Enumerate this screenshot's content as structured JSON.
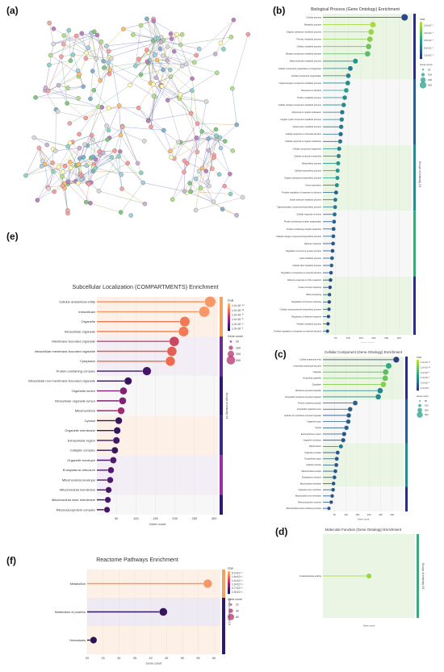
{
  "figure": {
    "panel_labels": {
      "a": "(a)",
      "b": "(b)",
      "c": "(c)",
      "d": "(d)",
      "e": "(e)",
      "f": "(f)"
    }
  },
  "network": {
    "node_colors": [
      "#7fc97f",
      "#f4a6a6",
      "#a6cee3",
      "#fdbf6f",
      "#cab2d6",
      "#b2df8a",
      "#fb9a99",
      "#ffffb3",
      "#8dd3c7",
      "#d9d9d9",
      "#bc80bd",
      "#80b1d3"
    ],
    "edge_colors": [
      "#888888",
      "#4a6fc7",
      "#5c9b5c",
      "#c58b2a",
      "#7a4aa8"
    ]
  },
  "chart_data": [
    {
      "id": "b",
      "type": "lollipop",
      "title": "Biological Process (Gene Ontology) Enrichment",
      "xlabel": "Gene count",
      "xlim": [
        0,
        350
      ],
      "xticks": [
        50,
        100,
        150,
        200,
        250,
        300
      ],
      "legend_fdr_title": "FDR",
      "legend_fdr_labels": [
        "2.0×10⁻⁴",
        "4.0×10⁻⁴",
        "6.0×10⁻⁴",
        "8.0×10⁻⁴",
        "1.0×10⁻³"
      ],
      "legend_size_title": "Gene count",
      "legend_size_labels": [
        "50",
        "100",
        "200",
        "300"
      ],
      "group_label": "Groups of similarity 0.8",
      "color_scheme": "green",
      "categories": [
        "Cellular process",
        "Metabolic process",
        "Organic substance metabolic process",
        "Primary metabolic process",
        "Cellular metabolic process",
        "Nitrogen compound metabolic process",
        "Macromolecule metabolic process",
        "Cellular component organization or biogenesis",
        "Cellular component organization",
        "Organonitrogen compound metabolic process",
        "Response to stimulus",
        "Protein metabolic process",
        "Cellular nitrogen compound metabolic process",
        "Response to organic substance",
        "Organic cyclic compound metabolic process",
        "Heterocycle metabolic process",
        "Cellular response to chemical stimulus",
        "Cellular response to organic substance",
        "Cellular component biogenesis",
        "Cellular component assembly",
        "Biosynthetic process",
        "Cellular biosynthetic process",
        "Organic substance biosynthetic process",
        "Gene expression",
        "Positive regulation of response to stimulus",
        "Small molecule metabolic process",
        "Organonitrogen compound biosynthetic process",
        "Cellular response to stress",
        "Protein-containing complex organization",
        "Protein-containing complex assembly",
        "Cellular nitrogen compound biosynthetic process",
        "Defense response",
        "Regulation of immune system process",
        "Lipid metabolic process",
        "Cellular lipid metabolic process",
        "Regulation of response to external stimulus",
        "Defense response to other organism",
        "Innate immune response",
        "RNA processing",
        "Regulation of immune response",
        "Cellular macromolecule biosynthetic process",
        "Regulation of defense response",
        "Peptide metabolic process",
        "Positive regulation of response to external stimulus"
      ],
      "values": [
        322,
        197,
        190,
        185,
        180,
        176,
        128,
        108,
        100,
        98,
        92,
        86,
        82,
        76,
        74,
        72,
        70,
        68,
        64,
        62,
        60,
        58,
        57,
        55,
        52,
        49,
        48,
        46,
        44,
        42,
        41,
        40,
        38,
        36,
        34,
        32,
        30,
        28,
        26,
        25,
        24,
        22,
        20,
        18
      ],
      "fdr_level": [
        0.1,
        0.95,
        0.9,
        0.85,
        0.75,
        0.7,
        0.45,
        0.3,
        0.35,
        0.4,
        0.5,
        0.4,
        0.4,
        0.3,
        0.35,
        0.3,
        0.25,
        0.3,
        0.35,
        0.35,
        0.45,
        0.45,
        0.45,
        0.4,
        0.2,
        0.3,
        0.3,
        0.25,
        0.2,
        0.2,
        0.2,
        0.15,
        0.15,
        0.2,
        0.2,
        0.15,
        0.1,
        0.1,
        0.15,
        0.1,
        0.15,
        0.1,
        0.1,
        0.1
      ],
      "group_colors": [
        "#2a2f7a",
        "#2e5e8c",
        "#2d8a8a",
        "#3fa87a",
        "#2a2f7a"
      ],
      "group_bg": [
        "#eaf5e3",
        "#f7f7f7"
      ]
    },
    {
      "id": "c",
      "type": "lollipop",
      "title": "Cellular Component (Gene Ontology) Enrichment",
      "xlabel": "Gene count",
      "xlim": [
        0,
        350
      ],
      "xticks": [
        50,
        100,
        150,
        200,
        250,
        300
      ],
      "legend_fdr_title": "FDR",
      "legend_fdr_labels": [
        "1.0×10⁻¹⁶",
        "1.0×10⁻¹²",
        "1.0×10⁻⁸",
        "1.0×10⁻⁴",
        "1.0×10⁻²",
        "1.0×10⁻¹"
      ],
      "legend_size_title": "Gene count",
      "legend_size_labels": [
        "50",
        "100",
        "200",
        "300"
      ],
      "color_scheme": "green",
      "categories": [
        "Cellular anatomical entity",
        "Intracellular anatomical structure",
        "Organelle",
        "Intracellular organelle",
        "Cytoplasm",
        "Membrane-bounded organelle",
        "Intracellular membrane-bounded organelle",
        "Protein-containing complex",
        "Intracellular organelle lumen",
        "Intracellular non-membrane-bounded organelle",
        "Organelle lumen",
        "Cytosol",
        "Endomembrane system",
        "Organelle membrane",
        "Mitochondrion",
        "Organelle envelope",
        "Extracellular region",
        "Catalytic complex",
        "Mitochondrial envelope",
        "Endoplasmic reticulum",
        "Mitochondrial membrane",
        "Organelle inner membrane",
        "Mitochondrial inner membrane",
        "Ribonucleoprotein complex",
        "Mitochondrial protein-containing complex"
      ],
      "values": [
        318,
        285,
        272,
        270,
        262,
        248,
        240,
        140,
        118,
        112,
        110,
        102,
        92,
        88,
        78,
        64,
        60,
        58,
        54,
        50,
        46,
        44,
        40,
        36,
        26
      ],
      "fdr_level": [
        0.05,
        0.55,
        0.7,
        0.75,
        0.85,
        0.35,
        0.4,
        0.2,
        0.2,
        0.15,
        0.2,
        0.2,
        0.15,
        0.15,
        0.3,
        0.15,
        0.15,
        0.15,
        0.15,
        0.15,
        0.15,
        0.15,
        0.15,
        0.15,
        0.15
      ],
      "group_colors": [
        "#2a2f7a",
        "#2e5e8c",
        "#2d8a8a",
        "#2a2f7a"
      ],
      "group_bg": [
        "#eaf5e3",
        "#f7f7f7"
      ]
    },
    {
      "id": "d",
      "type": "lollipop",
      "title": "Molecular Function (Gene Ontology) Enrichment",
      "xlabel": "Gene count",
      "xlim": [
        0,
        300
      ],
      "xticks": [],
      "group_label": "Groups of similarity 0.8",
      "color_scheme": "green",
      "categories": [
        "Oxidoreductase activity"
      ],
      "values": [
        150
      ],
      "fdr_level": [
        0.9
      ],
      "group_colors": [
        "#3fa87a"
      ],
      "group_bg": [
        "#eaf5e3"
      ]
    },
    {
      "id": "e",
      "type": "lollipop",
      "title": "Subcellular Localization (COMPARTMENTS) Enrichment",
      "xlabel": "Gene count",
      "xlim": [
        0,
        310
      ],
      "xticks": [
        50,
        100,
        150,
        200,
        250,
        300
      ],
      "legend_fdr_title": "FDR",
      "legend_fdr_labels": [
        "1.0×10⁻¹⁴",
        "1.0×10⁻¹¹",
        "1.0×10⁻⁸",
        "1.0×10⁻⁶",
        "1.0×10⁻⁴",
        "1.0×10⁻²"
      ],
      "legend_size_title": "Gene count",
      "legend_size_labels": [
        "20",
        "100",
        "200",
        "300"
      ],
      "group_label": "Groups of similarity 0.8",
      "color_scheme": "sunset",
      "categories": [
        "Cellular anatomical entity",
        "Intracellular",
        "Organelle",
        "Intracellular organelle",
        "Membrane-bounded organelle",
        "Intracellular membrane-bounded organelle",
        "Cytoplasm",
        "Protein-containing complex",
        "Intracellular non-membrane-bounded organelle",
        "Organelle lumen",
        "Intracellular organelle lumen",
        "Mitochondrion",
        "Cytosol",
        "Organelle membrane",
        "Extracellular region",
        "Catalytic complex",
        "Organelle envelope",
        "Endoplasmic reticulum",
        "Mitochondrial envelope",
        "Mitochondrial membrane",
        "Mitochondrial inner membrane",
        "Ribonucleoprotein complex"
      ],
      "values": [
        290,
        275,
        225,
        222,
        198,
        192,
        188,
        128,
        80,
        68,
        66,
        62,
        56,
        52,
        50,
        46,
        42,
        36,
        34,
        30,
        28,
        26
      ],
      "fdr_level": [
        0.9,
        0.9,
        0.8,
        0.8,
        0.6,
        0.7,
        0.75,
        0.15,
        0.1,
        0.35,
        0.35,
        0.45,
        0.1,
        0.1,
        0.15,
        0.1,
        0.2,
        0.2,
        0.2,
        0.15,
        0.15,
        0.15
      ],
      "group_colors": [
        "#f4a261",
        "#6a2c91",
        "#2e1a6e",
        "#3b2a8a",
        "#9c2fa3",
        "#2e1a6e"
      ],
      "group_bg": [
        "#fdf0e6",
        "#f3eef6",
        "#f7f7f7"
      ]
    },
    {
      "id": "f",
      "type": "lollipop",
      "title": "Reactome Pathways Enrichment",
      "xlabel": "Gene count",
      "xlim": [
        20,
        62
      ],
      "xticks": [
        20,
        25,
        30,
        35,
        40,
        45,
        50,
        55,
        60
      ],
      "legend_fdr_title": "FDR",
      "legend_fdr_labels": [
        "5.2×10⁻⁴",
        "1.6×10⁻³",
        "1.0×10⁻²",
        "1.0×10⁻²",
        "4.7×10⁻²",
        "1.5×10⁻²"
      ],
      "legend_size_title": "Gene count",
      "legend_size_labels": [
        "22",
        "40",
        "60"
      ],
      "group_label": "Groups of similarity 0.8",
      "color_scheme": "sunset",
      "categories": [
        "Metabolism",
        "Metabolism of proteins",
        "Hemostasis"
      ],
      "values": [
        58,
        44,
        22
      ],
      "fdr_level": [
        0.9,
        0.1,
        0.05
      ],
      "group_colors": [
        "#f4a261",
        "#2e1a6e",
        "#2e1a6e"
      ],
      "group_bg": [
        "#fdf0e6",
        "#eeeaf3"
      ]
    }
  ]
}
